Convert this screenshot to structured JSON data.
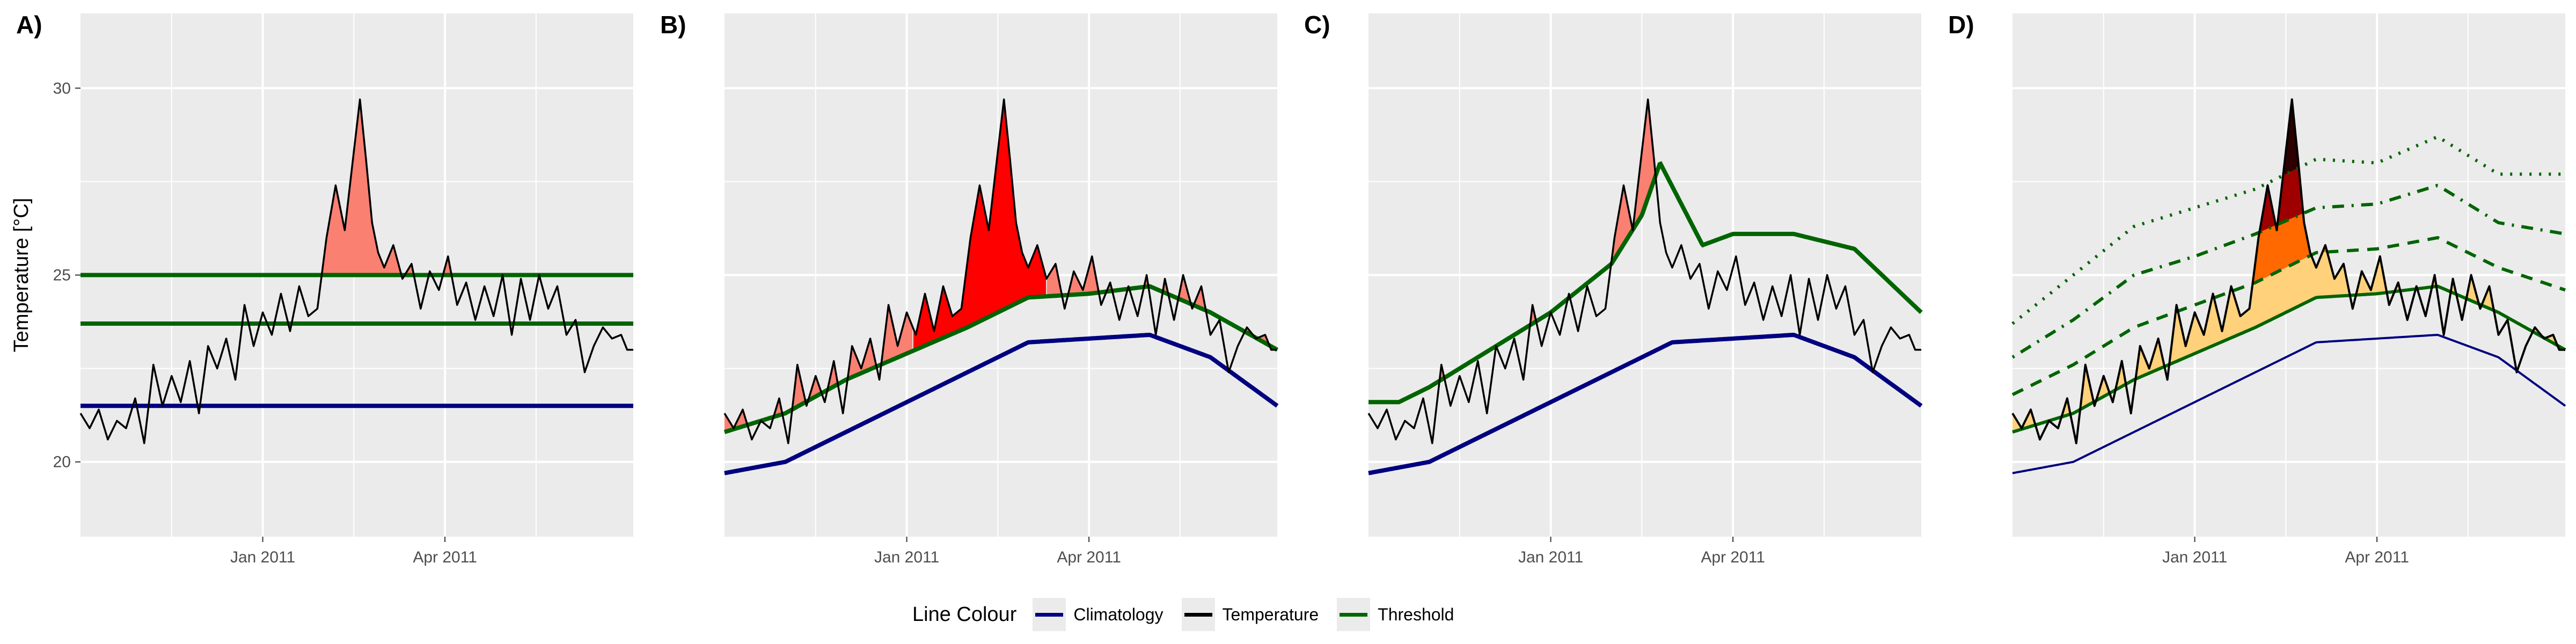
{
  "legend": {
    "title": "Line Colour",
    "items": [
      {
        "label": "Climatology",
        "color": "#000080"
      },
      {
        "label": "Temperature",
        "color": "#000000"
      },
      {
        "label": "Threshold",
        "color": "#006400"
      }
    ]
  },
  "ylabel": "Temperature [°C]",
  "colors": {
    "panel_bg": "#ebebeb",
    "grid": "#ffffff",
    "climatology": "#000080",
    "temperature": "#000000",
    "threshold": "#006400",
    "fill_salmon": "#fa8072",
    "fill_red": "#ff0000",
    "cat_moderate": "#ffd17a",
    "cat_strong": "#ff6900",
    "cat_severe": "#9e0000",
    "cat_extreme": "#2d0000"
  },
  "chart_data": [
    {
      "panel": "A)",
      "type": "line",
      "x_ticks": [
        "Jan 2011",
        "Apr 2011"
      ],
      "y_ticks": [
        20,
        25,
        30
      ],
      "ylim": [
        18,
        32
      ],
      "xlim_months": [
        0,
        9.1
      ],
      "grid": true,
      "series": [
        {
          "role": "temperature"
        },
        {
          "role": "climatology",
          "constant": 21.5
        },
        {
          "role": "threshold",
          "constant": 23.7
        },
        {
          "role": "threshold",
          "constant": 25.0
        }
      ],
      "fill": "temperature above 25.0 shaded salmon"
    },
    {
      "panel": "B)",
      "type": "line",
      "x_ticks": [
        "Jan 2011",
        "Apr 2011"
      ],
      "ylim": [
        18,
        32
      ],
      "grid": true,
      "series": [
        {
          "role": "temperature"
        },
        {
          "role": "climatology",
          "x_months": [
            0,
            1,
            2,
            3,
            4,
            5,
            6,
            7,
            8,
            9.1
          ],
          "y": [
            19.7,
            20.0,
            20.8,
            21.6,
            22.4,
            23.2,
            23.3,
            23.4,
            22.8,
            21.5
          ]
        },
        {
          "role": "threshold",
          "x_months": [
            0,
            1,
            2,
            3,
            4,
            5,
            6,
            7,
            8,
            9.1
          ],
          "y": [
            20.8,
            21.3,
            22.2,
            22.9,
            23.6,
            24.4,
            24.5,
            24.7,
            24.0,
            23.0
          ]
        }
      ],
      "fill": "temperature above threshold shaded; main event red, other events salmon"
    },
    {
      "panel": "C)",
      "type": "line",
      "x_ticks": [
        "Jan 2011",
        "Apr 2011"
      ],
      "ylim": [
        18,
        32
      ],
      "grid": true,
      "series": [
        {
          "role": "temperature"
        },
        {
          "role": "climatology",
          "x_months": [
            0,
            1,
            2,
            3,
            4,
            5,
            6,
            7,
            8,
            9.1
          ],
          "y": [
            19.7,
            20.0,
            20.8,
            21.6,
            22.4,
            23.2,
            23.3,
            23.4,
            22.8,
            21.5
          ]
        },
        {
          "role": "threshold",
          "x_months": [
            0,
            0.5,
            1,
            2,
            3,
            4,
            4.5,
            4.8,
            5.5,
            6,
            7,
            8,
            9.1
          ],
          "y": [
            21.6,
            21.6,
            22.0,
            23.0,
            24.0,
            25.3,
            26.6,
            28.0,
            25.8,
            26.1,
            26.1,
            25.7,
            24.0
          ]
        }
      ],
      "fill": "temperature above threshold shaded salmon"
    },
    {
      "panel": "D)",
      "type": "line",
      "x_ticks": [
        "Jan 2011",
        "Apr 2011"
      ],
      "ylim": [
        18,
        32
      ],
      "grid": true,
      "series": [
        {
          "role": "temperature"
        },
        {
          "role": "climatology",
          "x_months": [
            0,
            1,
            2,
            3,
            4,
            5,
            6,
            7,
            8,
            9.1
          ],
          "y": [
            19.7,
            20.0,
            20.8,
            21.6,
            22.4,
            23.2,
            23.3,
            23.4,
            22.8,
            21.5
          ]
        },
        {
          "role": "threshold",
          "style": "solid",
          "x_months": [
            0,
            1,
            2,
            3,
            4,
            5,
            6,
            7,
            8,
            9.1
          ],
          "y": [
            20.8,
            21.3,
            22.2,
            22.9,
            23.6,
            24.4,
            24.5,
            24.7,
            24.0,
            23.0
          ]
        },
        {
          "role": "threshold",
          "style": "dashed",
          "x_months": [
            0,
            1,
            2,
            3,
            4,
            5,
            6,
            7,
            8,
            9.1
          ],
          "y": [
            21.8,
            22.6,
            23.6,
            24.2,
            24.8,
            25.6,
            25.7,
            26.0,
            25.2,
            24.6
          ]
        },
        {
          "role": "threshold",
          "style": "dotdash",
          "x_months": [
            0,
            1,
            2,
            3,
            4,
            5,
            6,
            7,
            8,
            9.1
          ],
          "y": [
            22.8,
            23.8,
            25.0,
            25.5,
            26.1,
            26.8,
            26.9,
            27.4,
            26.4,
            26.1
          ]
        },
        {
          "role": "threshold",
          "style": "dotted",
          "x_months": [
            0,
            1,
            2,
            3,
            4,
            5,
            6,
            7,
            8,
            9.1
          ],
          "y": [
            23.7,
            25.0,
            26.3,
            26.8,
            27.3,
            28.1,
            28.0,
            28.7,
            27.7,
            27.7
          ]
        }
      ],
      "fill": "temperature above thresholds shaded by category colours"
    }
  ],
  "temperature_series": {
    "x_months": [
      0,
      0.15,
      0.3,
      0.45,
      0.6,
      0.75,
      0.9,
      1.05,
      1.2,
      1.35,
      1.5,
      1.65,
      1.8,
      1.95,
      2.1,
      2.25,
      2.4,
      2.55,
      2.7,
      2.85,
      3.0,
      3.15,
      3.3,
      3.45,
      3.6,
      3.75,
      3.9,
      4.05,
      4.2,
      4.35,
      4.5,
      4.6,
      4.7,
      4.8,
      4.9,
      5.0,
      5.15,
      5.3,
      5.45,
      5.6,
      5.75,
      5.9,
      6.05,
      6.2,
      6.35,
      6.5,
      6.65,
      6.8,
      6.95,
      7.1,
      7.25,
      7.4,
      7.55,
      7.7,
      7.85,
      8.0,
      8.15,
      8.3,
      8.45,
      8.6,
      8.75,
      8.9,
      9.0,
      9.1
    ],
    "y": [
      21.3,
      20.9,
      21.4,
      20.6,
      21.1,
      20.9,
      21.7,
      20.5,
      22.6,
      21.5,
      22.3,
      21.6,
      22.7,
      21.3,
      23.1,
      22.5,
      23.3,
      22.2,
      24.2,
      23.1,
      24.0,
      23.4,
      24.5,
      23.5,
      24.7,
      23.9,
      24.1,
      26.0,
      27.4,
      26.2,
      28.3,
      29.7,
      28.1,
      26.4,
      25.6,
      25.2,
      25.8,
      24.9,
      25.3,
      24.1,
      25.1,
      24.6,
      25.5,
      24.2,
      24.8,
      23.8,
      24.7,
      23.9,
      25.0,
      23.4,
      24.9,
      23.8,
      25.0,
      24.1,
      24.7,
      23.4,
      23.8,
      22.4,
      23.1,
      23.6,
      23.3,
      23.4,
      23.0,
      23.0
    ]
  }
}
